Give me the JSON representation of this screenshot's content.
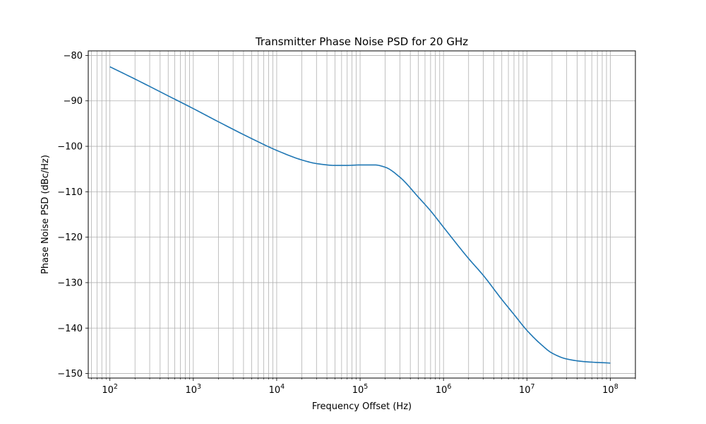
{
  "chart_data": {
    "type": "line",
    "title": "Transmitter Phase Noise PSD for 20 GHz",
    "xlabel": "Frequency Offset (Hz)",
    "ylabel": "Phase Noise PSD (dBc/Hz)",
    "x_scale": "log",
    "xlim": [
      55,
      200000000
    ],
    "ylim": [
      -151,
      -79
    ],
    "x_ticks": [
      100,
      1000,
      10000,
      100000,
      1000000,
      10000000,
      100000000
    ],
    "x_tick_labels": [
      {
        "base": "10",
        "exp": "2"
      },
      {
        "base": "10",
        "exp": "3"
      },
      {
        "base": "10",
        "exp": "4"
      },
      {
        "base": "10",
        "exp": "5"
      },
      {
        "base": "10",
        "exp": "6"
      },
      {
        "base": "10",
        "exp": "7"
      },
      {
        "base": "10",
        "exp": "8"
      }
    ],
    "y_ticks": [
      -80,
      -90,
      -100,
      -110,
      -120,
      -130,
      -140,
      -150
    ],
    "y_tick_labels": [
      "−80",
      "−90",
      "−100",
      "−110",
      "−120",
      "−130",
      "−140",
      "−150"
    ],
    "grid": {
      "major": true,
      "minor": true
    },
    "series": [
      {
        "color": "#1f77b4",
        "x": [
          100,
          200,
          500,
          1000,
          2000,
          5000,
          10000,
          20000,
          30000,
          50000,
          70000,
          100000,
          150000,
          200000,
          300000,
          500000,
          700000,
          1000000,
          2000000,
          3000000,
          5000000,
          7000000,
          10000000,
          15000000,
          20000000,
          30000000,
          50000000,
          100000000
        ],
        "y": [
          -82.5,
          -85.2,
          -88.9,
          -91.7,
          -94.6,
          -98.3,
          -100.9,
          -103.0,
          -103.8,
          -104.2,
          -104.2,
          -104.1,
          -104.1,
          -104.6,
          -106.8,
          -111.2,
          -114.2,
          -117.8,
          -124.7,
          -128.4,
          -133.7,
          -137.0,
          -140.5,
          -143.7,
          -145.5,
          -146.8,
          -147.4,
          -147.7
        ]
      }
    ]
  }
}
